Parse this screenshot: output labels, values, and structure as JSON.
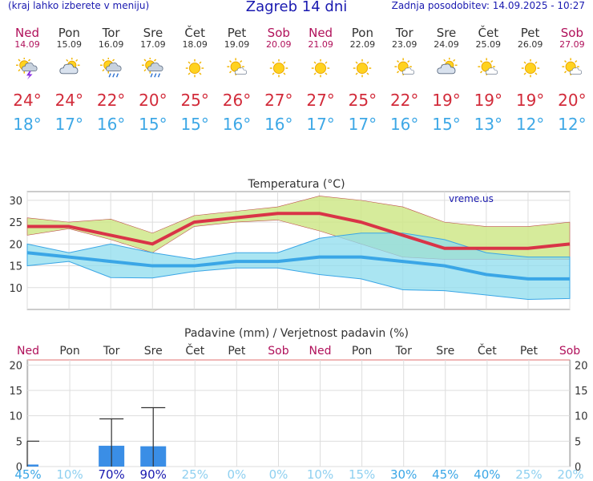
{
  "header": {
    "left_note": "(kraj lahko izberete v meniju)",
    "title": "Zagreb 14 dni",
    "last_update": "Zadnja posodobitev: 14.09.2025 - 10:27"
  },
  "days": [
    {
      "name": "Ned",
      "date": "14.09",
      "weekend": true,
      "icon": "sun-cloud-thunder-icon",
      "max": "24°",
      "min": "18°"
    },
    {
      "name": "Pon",
      "date": "15.09",
      "weekend": false,
      "icon": "cloud-sun-icon",
      "max": "24°",
      "min": "17°"
    },
    {
      "name": "Tor",
      "date": "16.09",
      "weekend": false,
      "icon": "sun-cloud-rain-icon",
      "max": "22°",
      "min": "16°"
    },
    {
      "name": "Sre",
      "date": "17.09",
      "weekend": false,
      "icon": "sun-cloud-rain-icon",
      "max": "20°",
      "min": "15°"
    },
    {
      "name": "Čet",
      "date": "18.09",
      "weekend": false,
      "icon": "sun-icon",
      "max": "25°",
      "min": "15°"
    },
    {
      "name": "Pet",
      "date": "19.09",
      "weekend": false,
      "icon": "sun-small-cloud-icon",
      "max": "26°",
      "min": "16°"
    },
    {
      "name": "Sob",
      "date": "20.09",
      "weekend": true,
      "icon": "sun-icon",
      "max": "27°",
      "min": "16°"
    },
    {
      "name": "Ned",
      "date": "21.09",
      "weekend": true,
      "icon": "sun-icon",
      "max": "27°",
      "min": "17°"
    },
    {
      "name": "Pon",
      "date": "22.09",
      "weekend": false,
      "icon": "sun-icon",
      "max": "25°",
      "min": "17°"
    },
    {
      "name": "Tor",
      "date": "23.09",
      "weekend": false,
      "icon": "sun-small-cloud-icon",
      "max": "22°",
      "min": "16°"
    },
    {
      "name": "Sre",
      "date": "24.09",
      "weekend": false,
      "icon": "cloud-sun-icon",
      "max": "19°",
      "min": "15°"
    },
    {
      "name": "Čet",
      "date": "25.09",
      "weekend": false,
      "icon": "sun-small-cloud-icon",
      "max": "19°",
      "min": "13°"
    },
    {
      "name": "Pet",
      "date": "26.09",
      "weekend": false,
      "icon": "sun-icon",
      "max": "19°",
      "min": "12°"
    },
    {
      "name": "Sob",
      "date": "27.09",
      "weekend": true,
      "icon": "sun-small-cloud-icon",
      "max": "20°",
      "min": "12°"
    }
  ],
  "colors": {
    "weekend": "#b0105a",
    "max_line": "#d93447",
    "min_line": "#3aa6e6",
    "max_band": "#cfe88a",
    "min_band": "#8edcee",
    "overlap_band": "#7fcf8a",
    "bar": "#3a8ee6"
  },
  "chart_data": [
    {
      "type": "line",
      "title": "Temperatura (°C)",
      "watermark": "vreme.us",
      "categories": [
        "Ned",
        "Pon",
        "Tor",
        "Sre",
        "Čet",
        "Pet",
        "Sob",
        "Ned",
        "Pon",
        "Tor",
        "Sre",
        "Čet",
        "Pet",
        "Sob"
      ],
      "ylim": [
        5,
        32
      ],
      "yticks": [
        10,
        15,
        20,
        25,
        30
      ],
      "grid": true,
      "series": [
        {
          "name": "max",
          "values": [
            24,
            24,
            22,
            20,
            25,
            26,
            27,
            27,
            25,
            22,
            19,
            19,
            19,
            20
          ]
        },
        {
          "name": "min",
          "values": [
            18,
            17,
            16,
            15,
            15,
            16,
            16,
            17,
            17,
            16,
            15,
            13,
            12,
            12
          ]
        }
      ],
      "bands": [
        {
          "name": "max_range",
          "upper": [
            26,
            25,
            25.7,
            22.5,
            26.5,
            27.5,
            28.5,
            31,
            30,
            28.5,
            25,
            24,
            24,
            25
          ],
          "lower": [
            22,
            23.5,
            21,
            18,
            24,
            25,
            25.5,
            23,
            20,
            17,
            16.5,
            16.5,
            16.5,
            16.5
          ]
        },
        {
          "name": "min_range",
          "upper": [
            20,
            18,
            20,
            18,
            16.5,
            18,
            18,
            21.3,
            22.5,
            22.5,
            21,
            18,
            17,
            17
          ],
          "lower": [
            15,
            16,
            12.3,
            12.2,
            13.7,
            14.5,
            14.5,
            13,
            12,
            9.5,
            9.3,
            8.3,
            7.3,
            7.5
          ]
        }
      ]
    },
    {
      "type": "bar",
      "title": "Padavine (mm) / Verjetnost padavin (%)",
      "categories": [
        "Ned",
        "Pon",
        "Tor",
        "Sre",
        "Čet",
        "Pet",
        "Sob",
        "Ned",
        "Pon",
        "Tor",
        "Sre",
        "Čet",
        "Pet",
        "Sob"
      ],
      "ylim": [
        0,
        21
      ],
      "yticks": [
        0,
        5,
        10,
        15,
        20
      ],
      "values": [
        0.4,
        0,
        4.1,
        4.0,
        0,
        0,
        0,
        0,
        0,
        0,
        0,
        0,
        0,
        0
      ],
      "error_high": [
        5,
        0,
        9.4,
        11.6,
        0,
        0,
        0,
        0,
        0,
        0,
        0,
        0,
        0,
        0
      ],
      "probabilities": [
        "45%",
        "10%",
        "70%",
        "90%",
        "25%",
        "0%",
        "0%",
        "10%",
        "15%",
        "30%",
        "45%",
        "40%",
        "25%",
        "20%"
      ]
    }
  ]
}
